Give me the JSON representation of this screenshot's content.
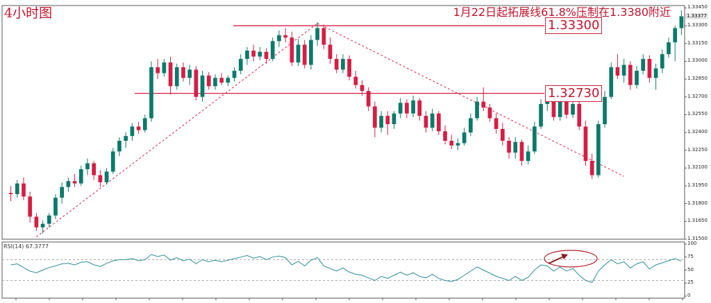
{
  "title": "4小时图",
  "annotation": "1月22日起拓展线61.8%压制在1.3380附近",
  "colors": {
    "up": "#0a7a6b",
    "down": "#d61e44",
    "line": "#d61e44",
    "rsi": "#2a8c97",
    "circle": "#b01f2a",
    "arrow": "#8a1a1a"
  },
  "chart_data": {
    "type": "candlestick",
    "ylim": [
      1.315,
      1.3347
    ],
    "y_ticks": [
      "1.33450",
      "1.33300",
      "1.33150",
      "1.33000",
      "1.32850",
      "1.32700",
      "1.32550",
      "1.32400",
      "1.32250",
      "1.32100",
      "1.31950",
      "1.31800",
      "1.31650",
      "1.31500"
    ],
    "current_price": "1.33377",
    "levels": [
      {
        "label": "1.33300",
        "value": 1.333
      },
      {
        "label": "1.32730",
        "value": 1.3273
      }
    ],
    "trendlines": [
      {
        "from": [
          4,
          1.3152
        ],
        "to": [
          48,
          1.3332
        ],
        "style": "dashed"
      },
      {
        "from": [
          48,
          1.3332
        ],
        "to": [
          96,
          1.3203
        ],
        "style": "dashed"
      }
    ],
    "candles": [
      [
        1.3189,
        1.3195,
        1.3182,
        1.3188
      ],
      [
        1.3188,
        1.32,
        1.3185,
        1.3197
      ],
      [
        1.3197,
        1.3202,
        1.3183,
        1.3186
      ],
      [
        1.3186,
        1.319,
        1.3164,
        1.3169
      ],
      [
        1.3169,
        1.3172,
        1.3157,
        1.316
      ],
      [
        1.316,
        1.3166,
        1.3155,
        1.3163
      ],
      [
        1.3163,
        1.3172,
        1.316,
        1.317
      ],
      [
        1.317,
        1.3188,
        1.3167,
        1.3185
      ],
      [
        1.3185,
        1.3198,
        1.318,
        1.3194
      ],
      [
        1.3194,
        1.3202,
        1.319,
        1.3199
      ],
      [
        1.3199,
        1.3205,
        1.3194,
        1.3197
      ],
      [
        1.3197,
        1.3212,
        1.3195,
        1.3209
      ],
      [
        1.3209,
        1.3218,
        1.3204,
        1.3214
      ],
      [
        1.3214,
        1.3216,
        1.32,
        1.3204
      ],
      [
        1.3204,
        1.3208,
        1.3194,
        1.3198
      ],
      [
        1.3198,
        1.321,
        1.3196,
        1.3207
      ],
      [
        1.3207,
        1.3227,
        1.3205,
        1.3224
      ],
      [
        1.3224,
        1.3236,
        1.322,
        1.3233
      ],
      [
        1.3233,
        1.324,
        1.3227,
        1.3237
      ],
      [
        1.3237,
        1.3248,
        1.3233,
        1.3245
      ],
      [
        1.3245,
        1.3249,
        1.3239,
        1.3242
      ],
      [
        1.3242,
        1.3255,
        1.324,
        1.3252
      ],
      [
        1.3252,
        1.33,
        1.3249,
        1.3295
      ],
      [
        1.3295,
        1.3302,
        1.3285,
        1.329
      ],
      [
        1.329,
        1.3302,
        1.3287,
        1.3299
      ],
      [
        1.3299,
        1.3304,
        1.3272,
        1.3279
      ],
      [
        1.3279,
        1.3298,
        1.3276,
        1.3295
      ],
      [
        1.3295,
        1.3299,
        1.3283,
        1.3286
      ],
      [
        1.3286,
        1.3297,
        1.328,
        1.3293
      ],
      [
        1.3293,
        1.3296,
        1.3267,
        1.327
      ],
      [
        1.327,
        1.3292,
        1.3266,
        1.3288
      ],
      [
        1.3288,
        1.3291,
        1.3276,
        1.3279
      ],
      [
        1.3279,
        1.3289,
        1.3276,
        1.3286
      ],
      [
        1.3286,
        1.329,
        1.328,
        1.3282
      ],
      [
        1.3282,
        1.3288,
        1.3279,
        1.3286
      ],
      [
        1.3286,
        1.3295,
        1.3283,
        1.3292
      ],
      [
        1.3292,
        1.3306,
        1.3289,
        1.3302
      ],
      [
        1.3302,
        1.3312,
        1.3297,
        1.3309
      ],
      [
        1.3309,
        1.3314,
        1.33,
        1.3304
      ],
      [
        1.3304,
        1.3312,
        1.3301,
        1.3308
      ],
      [
        1.3308,
        1.3311,
        1.3298,
        1.3302
      ],
      [
        1.3302,
        1.332,
        1.33,
        1.3317
      ],
      [
        1.3317,
        1.3326,
        1.3312,
        1.3322
      ],
      [
        1.3322,
        1.3328,
        1.3316,
        1.332
      ],
      [
        1.332,
        1.3325,
        1.3296,
        1.3299
      ],
      [
        1.3299,
        1.3319,
        1.3296,
        1.3314
      ],
      [
        1.3314,
        1.3318,
        1.3294,
        1.3297
      ],
      [
        1.3297,
        1.3322,
        1.3293,
        1.3318
      ],
      [
        1.3318,
        1.3333,
        1.3313,
        1.3328
      ],
      [
        1.3328,
        1.3331,
        1.331,
        1.3314
      ],
      [
        1.3314,
        1.332,
        1.3298,
        1.3302
      ],
      [
        1.3302,
        1.3306,
        1.329,
        1.3293
      ],
      [
        1.3293,
        1.3306,
        1.329,
        1.3302
      ],
      [
        1.3302,
        1.3305,
        1.3284,
        1.3287
      ],
      [
        1.3287,
        1.3292,
        1.3277,
        1.328
      ],
      [
        1.328,
        1.3284,
        1.3271,
        1.3275
      ],
      [
        1.3275,
        1.3278,
        1.3258,
        1.3262
      ],
      [
        1.3262,
        1.3266,
        1.3236,
        1.3244
      ],
      [
        1.3244,
        1.3258,
        1.324,
        1.3254
      ],
      [
        1.3254,
        1.3258,
        1.3238,
        1.3247
      ],
      [
        1.3247,
        1.3258,
        1.3243,
        1.3256
      ],
      [
        1.3256,
        1.3269,
        1.3252,
        1.3265
      ],
      [
        1.3265,
        1.3268,
        1.3252,
        1.3256
      ],
      [
        1.3256,
        1.3271,
        1.3253,
        1.3267
      ],
      [
        1.3267,
        1.3269,
        1.325,
        1.3254
      ],
      [
        1.3254,
        1.3258,
        1.324,
        1.3244
      ],
      [
        1.3244,
        1.326,
        1.3241,
        1.3256
      ],
      [
        1.3256,
        1.3258,
        1.3238,
        1.3241
      ],
      [
        1.3241,
        1.3246,
        1.323,
        1.3233
      ],
      [
        1.3233,
        1.3238,
        1.3226,
        1.3229
      ],
      [
        1.3229,
        1.3235,
        1.3225,
        1.3231
      ],
      [
        1.3231,
        1.3244,
        1.3229,
        1.324
      ],
      [
        1.324,
        1.3256,
        1.3237,
        1.3252
      ],
      [
        1.3252,
        1.327,
        1.325,
        1.3266
      ],
      [
        1.3266,
        1.3278,
        1.3258,
        1.3261
      ],
      [
        1.3261,
        1.3264,
        1.3249,
        1.3252
      ],
      [
        1.3252,
        1.3256,
        1.3239,
        1.3243
      ],
      [
        1.3243,
        1.3248,
        1.3229,
        1.3233
      ],
      [
        1.3233,
        1.3236,
        1.3218,
        1.3223
      ],
      [
        1.3223,
        1.3236,
        1.3218,
        1.3232
      ],
      [
        1.3232,
        1.3234,
        1.3212,
        1.3216
      ],
      [
        1.3216,
        1.3229,
        1.3213,
        1.3224
      ],
      [
        1.3224,
        1.3249,
        1.3222,
        1.3245
      ],
      [
        1.3245,
        1.3268,
        1.3243,
        1.3264
      ],
      [
        1.3264,
        1.327,
        1.3258,
        1.3267
      ],
      [
        1.3267,
        1.3269,
        1.325,
        1.3253
      ],
      [
        1.3253,
        1.3268,
        1.325,
        1.3266
      ],
      [
        1.3266,
        1.327,
        1.3252,
        1.3255
      ],
      [
        1.3255,
        1.3268,
        1.3252,
        1.3264
      ],
      [
        1.3264,
        1.3266,
        1.3242,
        1.3245
      ],
      [
        1.3245,
        1.325,
        1.3212,
        1.3216
      ],
      [
        1.3216,
        1.3222,
        1.3201,
        1.3204
      ],
      [
        1.3204,
        1.325,
        1.3202,
        1.3247
      ],
      [
        1.3247,
        1.3275,
        1.3244,
        1.327
      ],
      [
        1.327,
        1.3299,
        1.3268,
        1.3295
      ],
      [
        1.3295,
        1.3306,
        1.3285,
        1.3288
      ],
      [
        1.3288,
        1.3302,
        1.3282,
        1.3297
      ],
      [
        1.3297,
        1.33,
        1.3276,
        1.328
      ],
      [
        1.328,
        1.3296,
        1.3277,
        1.3292
      ],
      [
        1.3292,
        1.3306,
        1.3289,
        1.3302
      ],
      [
        1.3302,
        1.3305,
        1.3282,
        1.3286
      ],
      [
        1.3286,
        1.3298,
        1.3276,
        1.3294
      ],
      [
        1.3294,
        1.331,
        1.329,
        1.3306
      ],
      [
        1.3306,
        1.332,
        1.3303,
        1.3316
      ],
      [
        1.3316,
        1.333,
        1.33,
        1.3328
      ],
      [
        1.3328,
        1.3343,
        1.3322,
        1.3338
      ]
    ],
    "rsi": {
      "label": "RSI(14) 67.3777",
      "ylim": [
        0,
        100
      ],
      "ticks": [
        "100",
        "75",
        "50",
        "25",
        "0"
      ],
      "levels": [
        30,
        70
      ],
      "values": [
        60,
        62,
        55,
        48,
        45,
        50,
        55,
        58,
        62,
        63,
        60,
        65,
        66,
        60,
        57,
        63,
        68,
        70,
        70,
        72,
        68,
        70,
        80,
        76,
        79,
        69,
        74,
        68,
        71,
        62,
        70,
        66,
        69,
        66,
        69,
        72,
        75,
        78,
        73,
        76,
        70,
        75,
        77,
        74,
        60,
        67,
        58,
        69,
        74,
        58,
        53,
        48,
        54,
        46,
        42,
        40,
        35,
        30,
        38,
        34,
        40,
        46,
        40,
        45,
        38,
        35,
        42,
        34,
        30,
        28,
        32,
        40,
        48,
        56,
        50,
        44,
        38,
        34,
        30,
        38,
        30,
        36,
        50,
        60,
        58,
        48,
        56,
        48,
        53,
        40,
        30,
        26,
        48,
        60,
        70,
        62,
        66,
        54,
        62,
        66,
        52,
        60,
        64,
        68,
        72,
        67
      ]
    }
  }
}
